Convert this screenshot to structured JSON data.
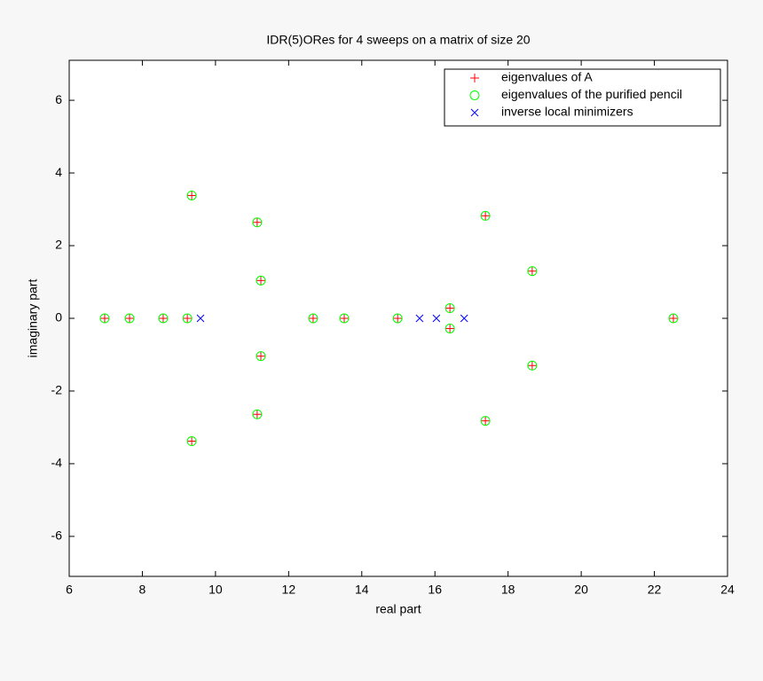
{
  "chart_data": {
    "type": "scatter",
    "title": "IDR(5)ORes for 4 sweeps on a matrix of size 20",
    "x_label": "real part",
    "y_label": "imaginary part",
    "xlim": [
      6,
      24
    ],
    "xticks": [
      6,
      8,
      10,
      12,
      14,
      16,
      18,
      20,
      22,
      24
    ],
    "ylim": [
      -7.1,
      7.1
    ],
    "yticks": [
      -6,
      -4,
      -2,
      0,
      2,
      4,
      6
    ],
    "legend": "upper right",
    "series": [
      {
        "name": "eigenvalues of A",
        "color": "#ff0000",
        "marker": "+",
        "x": [
          6.97,
          7.65,
          8.57,
          9.23,
          9.35,
          9.35,
          11.14,
          11.14,
          11.24,
          11.24,
          12.67,
          13.52,
          14.98,
          16.41,
          16.41,
          17.38,
          17.38,
          18.66,
          18.66,
          22.52
        ],
        "values": [
          0,
          0,
          0,
          0,
          3.38,
          -3.38,
          2.64,
          -2.64,
          1.04,
          -1.04,
          0,
          0,
          0,
          0.28,
          -0.28,
          2.82,
          -2.82,
          1.3,
          -1.3,
          0
        ]
      },
      {
        "name": "eigenvalues of the purified pencil",
        "color": "#00ff00",
        "marker": "o",
        "x": [
          6.97,
          7.65,
          8.57,
          9.23,
          9.35,
          9.35,
          11.14,
          11.14,
          11.24,
          11.24,
          12.67,
          13.52,
          14.98,
          16.41,
          16.41,
          17.38,
          17.38,
          18.66,
          18.66,
          22.52
        ],
        "values": [
          0,
          0,
          0,
          0,
          3.38,
          -3.38,
          2.64,
          -2.64,
          1.04,
          -1.04,
          0,
          0,
          0,
          0.28,
          -0.28,
          2.82,
          -2.82,
          1.3,
          -1.3,
          0
        ]
      },
      {
        "name": "inverse local minimizers",
        "color": "#0000ff",
        "marker": "x",
        "x": [
          9.59,
          15.58,
          16.04,
          16.8
        ],
        "values": [
          0,
          0,
          0,
          0
        ]
      }
    ]
  }
}
